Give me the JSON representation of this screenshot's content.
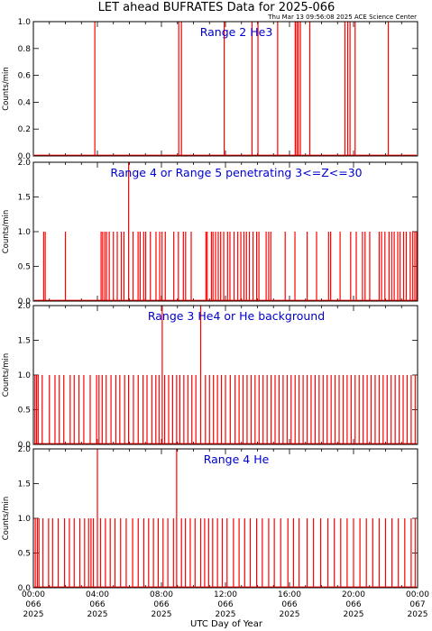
{
  "title": "LET ahead BUFRATES Data for 2025-066",
  "timestamp": "Thu Mar 13 09:56:08 2025 ACE Science Center",
  "xlabel": "UTC Day of Year",
  "colors": {
    "series": "#ff0000",
    "panel_title": "#0000cc",
    "axes": "#000000"
  },
  "chart_data": [
    {
      "type": "line",
      "title": "Range 2 He3",
      "ylabel": "Counts/min",
      "ylim": [
        0,
        1.0
      ],
      "yticks": [
        "0.0",
        "0.2",
        "0.4",
        "0.6",
        "0.8",
        "1.0"
      ],
      "xlim": [
        0,
        24
      ],
      "x": [
        3.84,
        9.08,
        9.25,
        11.92,
        13.66,
        14.03,
        15.26,
        16.36,
        16.46,
        16.55,
        16.68,
        17.27,
        19.46,
        19.64,
        19.78,
        20.1,
        22.17
      ],
      "y": [
        1,
        1,
        1,
        1,
        1,
        1,
        1,
        1,
        1,
        1,
        1,
        1,
        1,
        1,
        1,
        1,
        1
      ]
    },
    {
      "type": "line",
      "title": "Range 4 or Range 5 penetrating 3<=Z<=30",
      "ylabel": "Counts/min",
      "ylim": [
        0,
        2.0
      ],
      "yticks": [
        "0.0",
        "0.5",
        "1.0",
        "1.5",
        "2.0"
      ],
      "xlim": [
        0,
        24
      ],
      "x": [
        0.64,
        0.74,
        2.0,
        4.23,
        4.33,
        4.46,
        4.57,
        4.74,
        5.0,
        5.24,
        5.49,
        5.66,
        5.95,
        6.23,
        6.54,
        6.67,
        6.89,
        7.02,
        7.31,
        7.66,
        7.89,
        8.04,
        8.24,
        8.77,
        9.06,
        9.37,
        9.51,
        9.86,
        10.78,
        10.86,
        11.12,
        11.22,
        11.38,
        11.55,
        11.7,
        11.89,
        12.13,
        12.28,
        12.54,
        12.77,
        12.96,
        13.15,
        13.31,
        13.49,
        13.72,
        13.95,
        14.09,
        14.54,
        14.7,
        14.83,
        15.73,
        16.34,
        17.1,
        17.69,
        18.44,
        18.57,
        19.16,
        19.82,
        20.17,
        20.56,
        20.72,
        21.01,
        21.6,
        21.75,
        21.96,
        22.22,
        22.38,
        22.54,
        22.76,
        22.91,
        23.13,
        23.29,
        23.54,
        23.7,
        23.83,
        23.94
      ],
      "y": [
        1,
        1,
        1,
        1,
        1,
        1,
        1,
        1,
        1,
        1,
        1,
        1,
        2,
        1,
        1,
        1,
        1,
        1,
        1,
        1,
        1,
        1,
        1,
        1,
        1,
        1,
        1,
        1,
        1,
        1,
        1,
        1,
        1,
        1,
        1,
        1,
        1,
        1,
        1,
        1,
        1,
        1,
        1,
        1,
        1,
        1,
        1,
        1,
        1,
        1,
        1,
        1,
        1,
        1,
        1,
        1,
        1,
        1,
        1,
        1,
        1,
        1,
        1,
        1,
        1,
        1,
        1,
        1,
        1,
        1,
        1,
        1,
        1,
        1,
        1,
        1
      ]
    },
    {
      "type": "line",
      "title": "Range 3 He4 or He background",
      "ylabel": "Counts/min",
      "ylim": [
        0,
        2.0
      ],
      "yticks": [
        "0.0",
        "0.5",
        "1.0",
        "1.5",
        "2.0"
      ],
      "xlim": [
        0,
        24
      ],
      "x": [
        0.1,
        0.2,
        0.3,
        0.55,
        1.0,
        1.35,
        1.62,
        1.9,
        2.3,
        2.55,
        2.85,
        3.15,
        3.55,
        3.95,
        4.1,
        4.3,
        4.55,
        4.85,
        5.15,
        5.4,
        5.7,
        5.95,
        6.25,
        6.55,
        6.85,
        7.1,
        7.4,
        7.65,
        7.85,
        8.05,
        8.2,
        8.45,
        8.7,
        8.95,
        9.15,
        9.4,
        9.65,
        9.9,
        10.15,
        10.45,
        10.75,
        11.0,
        11.25,
        11.5,
        11.75,
        12.0,
        12.3,
        12.6,
        12.85,
        13.1,
        13.35,
        13.6,
        13.85,
        14.1,
        14.35,
        14.6,
        14.85,
        15.1,
        15.35,
        15.6,
        15.85,
        16.1,
        16.35,
        16.6,
        16.85,
        17.1,
        17.35,
        17.6,
        17.85,
        18.1,
        18.35,
        18.6,
        18.85,
        19.1,
        19.35,
        19.6,
        19.85,
        20.1,
        20.35,
        20.6,
        20.85,
        21.1,
        21.35,
        21.6,
        21.85,
        22.1,
        22.35,
        22.6,
        22.85,
        23.1,
        23.35,
        23.6,
        23.85
      ],
      "y": [
        1,
        1,
        1,
        1,
        1,
        1,
        1,
        1,
        1,
        1,
        1,
        1,
        1,
        1,
        1,
        1,
        1,
        1,
        1,
        1,
        1,
        1,
        1,
        1,
        1,
        1,
        1,
        1,
        1,
        2,
        1,
        1,
        1,
        1,
        1,
        1,
        1,
        1,
        1,
        2,
        1,
        1,
        1,
        1,
        1,
        1,
        1,
        1,
        1,
        1,
        1,
        1,
        1,
        1,
        1,
        1,
        1,
        1,
        1,
        1,
        1,
        1,
        1,
        1,
        1,
        1,
        1,
        1,
        1,
        1,
        1,
        1,
        1,
        1,
        1,
        1,
        1,
        1,
        1,
        1,
        1,
        1,
        1,
        1,
        1,
        1,
        1,
        1,
        1,
        1,
        1,
        1,
        1
      ]
    },
    {
      "type": "line",
      "title": "Range 4 He",
      "ylabel": "Counts/min",
      "ylim": [
        0,
        2.0
      ],
      "yticks": [
        "0.0",
        "0.5",
        "1.0",
        "1.5",
        "2.0"
      ],
      "xlim": [
        0,
        24
      ],
      "x": [
        0.12,
        0.25,
        0.35,
        0.6,
        0.95,
        1.2,
        1.55,
        1.95,
        2.25,
        2.55,
        2.9,
        3.2,
        3.45,
        3.6,
        3.75,
        4.0,
        4.2,
        4.5,
        4.8,
        5.1,
        5.45,
        5.8,
        6.2,
        6.55,
        6.9,
        7.2,
        7.5,
        7.8,
        8.1,
        8.4,
        8.75,
        8.95,
        9.25,
        9.5,
        9.8,
        10.1,
        10.45,
        10.7,
        10.95,
        11.2,
        11.5,
        11.8,
        12.1,
        12.5,
        12.85,
        13.2,
        13.55,
        13.95,
        14.3,
        14.7,
        15.05,
        15.45,
        15.9,
        16.25,
        16.6,
        17.1,
        17.5,
        17.95,
        18.4,
        18.8,
        19.2,
        19.6,
        20.0,
        20.4,
        20.8,
        21.2,
        21.6,
        22.0,
        22.4,
        22.8,
        23.2,
        23.6,
        23.85
      ],
      "y": [
        1,
        1,
        1,
        1,
        1,
        1,
        1,
        1,
        1,
        1,
        1,
        1,
        1,
        1,
        1,
        2,
        1,
        1,
        1,
        1,
        1,
        1,
        1,
        1,
        1,
        1,
        1,
        1,
        1,
        1,
        1,
        2,
        1,
        1,
        1,
        1,
        1,
        1,
        1,
        1,
        1,
        1,
        1,
        1,
        1,
        1,
        1,
        1,
        1,
        1,
        1,
        1,
        1,
        1,
        1,
        1,
        1,
        1,
        1,
        1,
        1,
        1,
        1,
        1,
        1,
        1,
        1,
        1,
        1,
        1,
        1,
        1,
        1
      ]
    }
  ],
  "xticks": [
    {
      "time": "00:00",
      "doy": "066",
      "year": "2025"
    },
    {
      "time": "04:00",
      "doy": "066",
      "year": "2025"
    },
    {
      "time": "08:00",
      "doy": "066",
      "year": "2025"
    },
    {
      "time": "12:00",
      "doy": "066",
      "year": "2025"
    },
    {
      "time": "16:00",
      "doy": "066",
      "year": "2025"
    },
    {
      "time": "20:00",
      "doy": "066",
      "year": "2025"
    },
    {
      "time": "00:00",
      "doy": "067",
      "year": "2025"
    }
  ]
}
